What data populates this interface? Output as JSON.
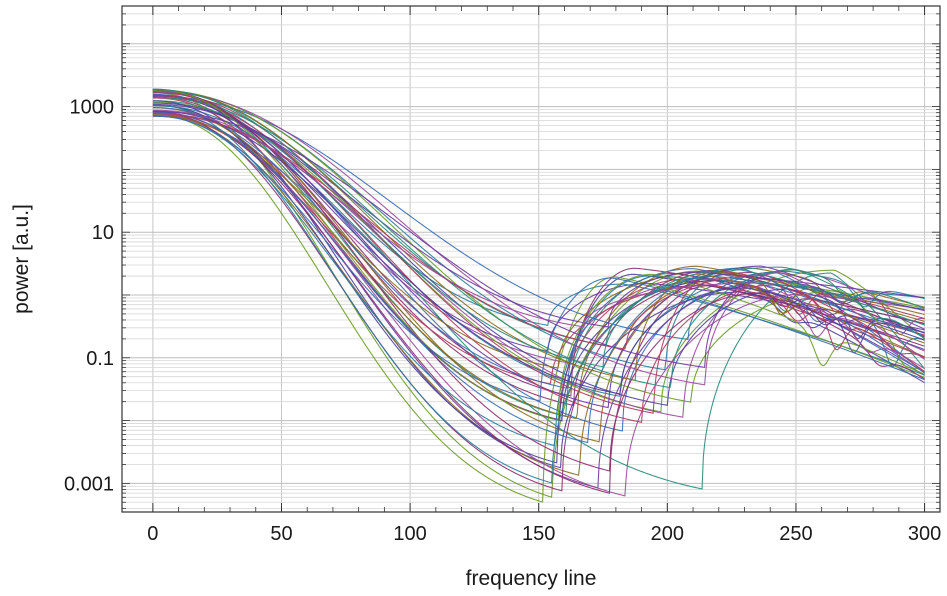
{
  "chart_data": {
    "type": "line",
    "xlabel": "frequency line",
    "ylabel": "power [a.u.]",
    "xlim": [
      -12,
      306
    ],
    "ylim": [
      0.00035,
      40000
    ],
    "yscale": "log",
    "grid": true,
    "legend": "none",
    "x_ticks": [
      0,
      50,
      100,
      150,
      200,
      250,
      300
    ],
    "x_tick_labels": [
      "0",
      "50",
      "100",
      "150",
      "200",
      "250",
      "300"
    ],
    "y_ticks": [
      0.001,
      0.1,
      10,
      1000
    ],
    "y_tick_labels": [
      "0.001",
      "0.1",
      "10",
      "1000"
    ],
    "series_count": 50,
    "series_colors": [
      "#8b2e6e",
      "#4b3e9a",
      "#2a7a9a",
      "#6a9a2a",
      "#8a6a20",
      "#b03a5a",
      "#3a6ab0",
      "#6a3aa0",
      "#2a8a7a",
      "#9a4a9a"
    ],
    "series_shape": {
      "x_start": 0,
      "x_end": 300,
      "start_power_range": [
        700,
        1900
      ],
      "main_dip_x_range": [
        150,
        215
      ],
      "main_dip_power_range": [
        0.0005,
        0.35
      ],
      "tail_peak_x_range": [
        205,
        235
      ],
      "tail_peak_power_range": [
        1.0,
        2.9
      ],
      "end_power_range": [
        0.04,
        0.95
      ]
    }
  }
}
